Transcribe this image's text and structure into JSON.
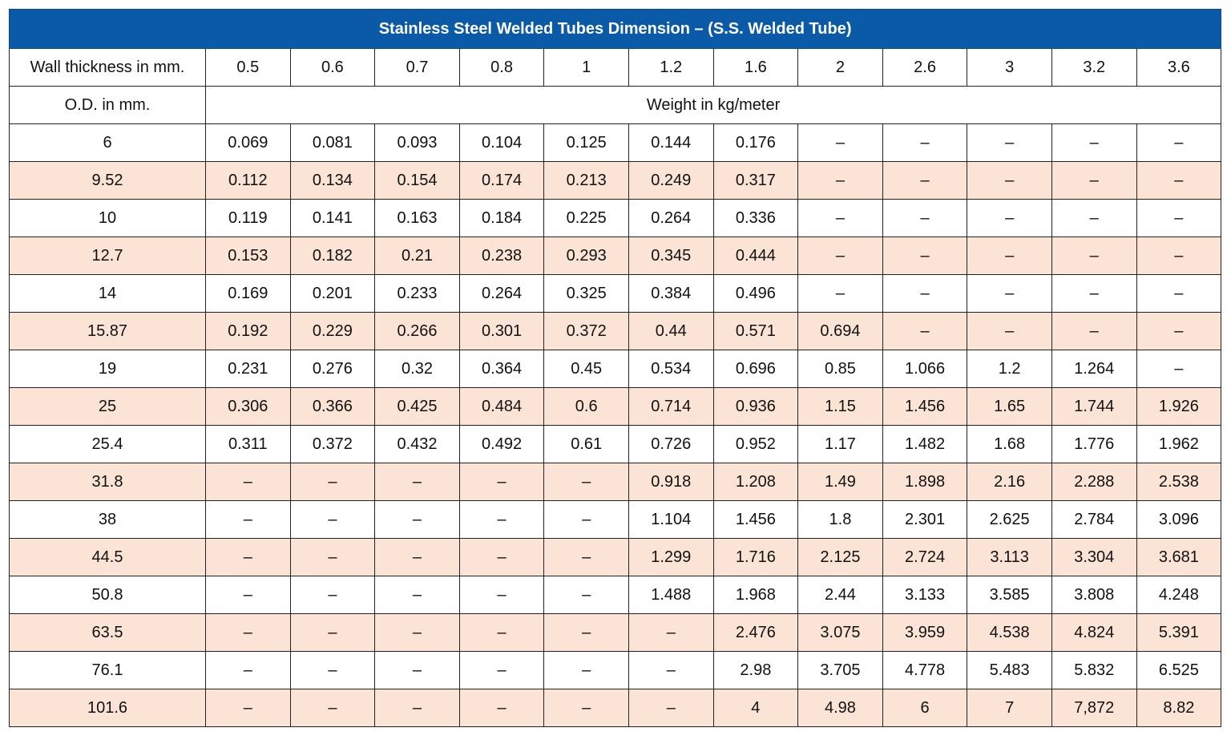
{
  "title": "Stainless Steel Welded Tubes Dimension – (S.S. Welded Tube)",
  "wall_thickness_label": "Wall thickness in mm.",
  "od_label": "O.D. in mm.",
  "weight_label": "Weight in kg/meter",
  "wall_thicknesses": [
    "0.5",
    "0.6",
    "0.7",
    "0.8",
    "1",
    "1.2",
    "1.6",
    "2",
    "2.6",
    "3",
    "3.2",
    "3.6"
  ],
  "rows": [
    {
      "od": "6",
      "weights": [
        "0.069",
        "0.081",
        "0.093",
        "0.104",
        "0.125",
        "0.144",
        "0.176",
        "–",
        "–",
        "–",
        "–",
        "–"
      ]
    },
    {
      "od": "9.52",
      "weights": [
        "0.112",
        "0.134",
        "0.154",
        "0.174",
        "0.213",
        "0.249",
        "0.317",
        "–",
        "–",
        "–",
        "–",
        "–"
      ]
    },
    {
      "od": "10",
      "weights": [
        "0.119",
        "0.141",
        "0.163",
        "0.184",
        "0.225",
        "0.264",
        "0.336",
        "–",
        "–",
        "–",
        "–",
        "–"
      ]
    },
    {
      "od": "12.7",
      "weights": [
        "0.153",
        "0.182",
        "0.21",
        "0.238",
        "0.293",
        "0.345",
        "0.444",
        "–",
        "–",
        "–",
        "–",
        "–"
      ]
    },
    {
      "od": "14",
      "weights": [
        "0.169",
        "0.201",
        "0.233",
        "0.264",
        "0.325",
        "0.384",
        "0.496",
        "–",
        "–",
        "–",
        "–",
        "–"
      ]
    },
    {
      "od": "15.87",
      "weights": [
        "0.192",
        "0.229",
        "0.266",
        "0.301",
        "0.372",
        "0.44",
        "0.571",
        "0.694",
        "–",
        "–",
        "–",
        "–"
      ]
    },
    {
      "od": "19",
      "weights": [
        "0.231",
        "0.276",
        "0.32",
        "0.364",
        "0.45",
        "0.534",
        "0.696",
        "0.85",
        "1.066",
        "1.2",
        "1.264",
        "–"
      ]
    },
    {
      "od": "25",
      "weights": [
        "0.306",
        "0.366",
        "0.425",
        "0.484",
        "0.6",
        "0.714",
        "0.936",
        "1.15",
        "1.456",
        "1.65",
        "1.744",
        "1.926"
      ]
    },
    {
      "od": "25.4",
      "weights": [
        "0.311",
        "0.372",
        "0.432",
        "0.492",
        "0.61",
        "0.726",
        "0.952",
        "1.17",
        "1.482",
        "1.68",
        "1.776",
        "1.962"
      ]
    },
    {
      "od": "31.8",
      "weights": [
        "–",
        "–",
        "–",
        "–",
        "–",
        "0.918",
        "1.208",
        "1.49",
        "1.898",
        "2.16",
        "2.288",
        "2.538"
      ]
    },
    {
      "od": "38",
      "weights": [
        "–",
        "–",
        "–",
        "–",
        "–",
        "1.104",
        "1.456",
        "1.8",
        "2.301",
        "2.625",
        "2.784",
        "3.096"
      ]
    },
    {
      "od": "44.5",
      "weights": [
        "–",
        "–",
        "–",
        "–",
        "–",
        "1.299",
        "1.716",
        "2.125",
        "2.724",
        "3.113",
        "3.304",
        "3.681"
      ]
    },
    {
      "od": "50.8",
      "weights": [
        "–",
        "–",
        "–",
        "–",
        "–",
        "1.488",
        "1.968",
        "2.44",
        "3.133",
        "3.585",
        "3.808",
        "4.248"
      ]
    },
    {
      "od": "63.5",
      "weights": [
        "–",
        "–",
        "–",
        "–",
        "–",
        "–",
        "2.476",
        "3.075",
        "3.959",
        "4.538",
        "4.824",
        "5.391"
      ]
    },
    {
      "od": "76.1",
      "weights": [
        "–",
        "–",
        "–",
        "–",
        "–",
        "–",
        "2.98",
        "3.705",
        "4.778",
        "5.483",
        "5.832",
        "6.525"
      ]
    },
    {
      "od": "101.6",
      "weights": [
        "–",
        "–",
        "–",
        "–",
        "–",
        "–",
        "4",
        "4.98",
        "6",
        "7",
        "7,872",
        "8.82"
      ]
    }
  ],
  "colors": {
    "header_bg": "#0a5aa8",
    "header_text": "#ffffff",
    "stripe": "#fbe4d5",
    "border": "#222222"
  }
}
